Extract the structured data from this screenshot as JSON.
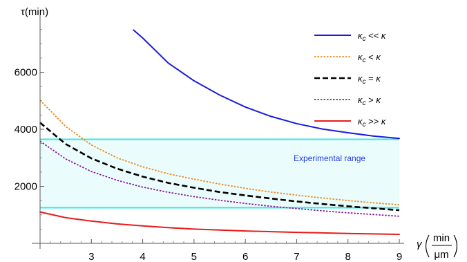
{
  "chart_data": {
    "type": "line",
    "ylabel": "τ(min)",
    "xlabel": {
      "symbol": "γ",
      "fraction_top": "min",
      "fraction_bottom": "μm"
    },
    "xlim": [
      2,
      9
    ],
    "ylim": [
      0,
      8000
    ],
    "xticks": [
      3,
      4,
      5,
      6,
      7,
      8,
      9
    ],
    "yticks": [
      2000,
      4000,
      6000
    ],
    "legend_position": "top-right",
    "experimental_range": {
      "label": "Experimental range",
      "y_min": 1250,
      "y_max": 3650,
      "fill": "#eafcfc",
      "line_color": "#33e8e8",
      "label_color": "#1f3de6"
    },
    "series": [
      {
        "name": "κc << κ",
        "legend_text": "<<",
        "color": "#1a1ae0",
        "dash": "solid",
        "x": [
          3.82,
          4.0,
          4.5,
          5.0,
          5.5,
          6.0,
          6.5,
          7.0,
          7.5,
          8.0,
          8.5,
          9.0
        ],
        "y": [
          7480,
          7200,
          6320,
          5700,
          5200,
          4780,
          4450,
          4200,
          4010,
          3880,
          3760,
          3680
        ]
      },
      {
        "name": "κc < κ",
        "legend_text": "<",
        "color": "#ee8a1e",
        "dash": "dotted",
        "x": [
          2.0,
          2.5,
          3.0,
          3.5,
          4.0,
          4.5,
          5.0,
          5.5,
          6.0,
          6.5,
          7.0,
          7.5,
          8.0,
          8.5,
          9.0
        ],
        "y": [
          5020,
          4100,
          3450,
          3000,
          2680,
          2440,
          2250,
          2080,
          1930,
          1800,
          1690,
          1590,
          1500,
          1420,
          1350
        ]
      },
      {
        "name": "κc = κ",
        "legend_text": "=",
        "color": "#000000",
        "dash": "dashed",
        "x": [
          2.0,
          2.5,
          3.0,
          3.5,
          4.0,
          4.5,
          5.0,
          5.5,
          6.0,
          6.5,
          7.0,
          7.5,
          8.0,
          8.5,
          9.0
        ],
        "y": [
          4230,
          3480,
          2980,
          2620,
          2340,
          2120,
          1950,
          1800,
          1680,
          1570,
          1470,
          1380,
          1300,
          1230,
          1160
        ]
      },
      {
        "name": "κc > κ",
        "legend_text": ">",
        "color": "#8a1a9a",
        "dash": "dotted",
        "x": [
          2.0,
          2.5,
          3.0,
          3.5,
          4.0,
          4.5,
          5.0,
          5.5,
          6.0,
          6.5,
          7.0,
          7.5,
          8.0,
          8.5,
          9.0
        ],
        "y": [
          3580,
          2960,
          2520,
          2210,
          1970,
          1790,
          1640,
          1510,
          1400,
          1300,
          1220,
          1140,
          1070,
          1010,
          950
        ]
      },
      {
        "name": "κc >> κ",
        "legend_text": ">>",
        "color": "#e81a1a",
        "dash": "solid",
        "x": [
          2.0,
          2.5,
          3.0,
          3.5,
          4.0,
          4.5,
          5.0,
          5.5,
          6.0,
          6.5,
          7.0,
          7.5,
          8.0,
          8.5,
          9.0
        ],
        "y": [
          1100,
          900,
          780,
          680,
          610,
          550,
          500,
          465,
          435,
          410,
          385,
          365,
          345,
          330,
          315
        ]
      }
    ]
  }
}
